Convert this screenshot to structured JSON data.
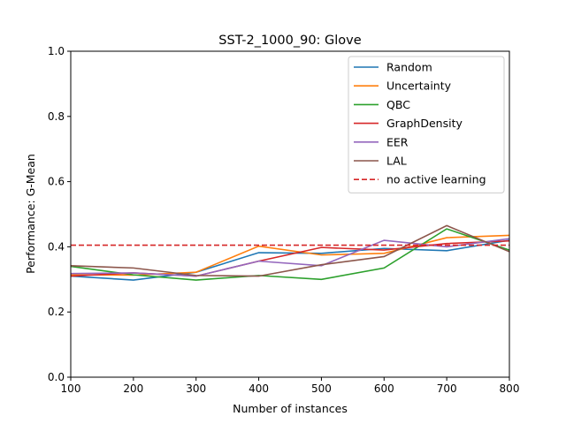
{
  "chart_data": {
    "type": "line",
    "title": "SST-2_1000_90: Glove",
    "xlabel": "Number of instances",
    "ylabel": "Performance: G-Mean",
    "xlim": [
      100,
      800
    ],
    "ylim": [
      0.0,
      1.0
    ],
    "xticks": [
      "100",
      "200",
      "300",
      "400",
      "500",
      "600",
      "700",
      "800"
    ],
    "yticks": [
      "0.0",
      "0.2",
      "0.4",
      "0.6",
      "0.8",
      "1.0"
    ],
    "grid": false,
    "legend_position": "top-right",
    "x": [
      100,
      200,
      300,
      400,
      500,
      600,
      700,
      800
    ],
    "series": [
      {
        "name": "Random",
        "color": "#1f77b4",
        "style": "solid",
        "values": [
          0.31,
          0.298,
          0.322,
          0.382,
          0.38,
          0.395,
          0.388,
          0.42
        ]
      },
      {
        "name": "Uncertainty",
        "color": "#ff7f0e",
        "style": "solid",
        "values": [
          0.314,
          0.313,
          0.322,
          0.402,
          0.375,
          0.38,
          0.428,
          0.435
        ]
      },
      {
        "name": "QBC",
        "color": "#2ca02c",
        "style": "solid",
        "values": [
          0.34,
          0.314,
          0.298,
          0.312,
          0.3,
          0.335,
          0.455,
          0.39
        ]
      },
      {
        "name": "GraphDensity",
        "color": "#d62728",
        "style": "solid",
        "values": [
          0.31,
          0.32,
          0.31,
          0.356,
          0.398,
          0.39,
          0.41,
          0.418
        ]
      },
      {
        "name": "EER",
        "color": "#9467bd",
        "style": "solid",
        "values": [
          0.318,
          0.32,
          0.31,
          0.356,
          0.342,
          0.42,
          0.4,
          0.425
        ]
      },
      {
        "name": "LAL",
        "color": "#8c564b",
        "style": "solid",
        "values": [
          0.342,
          0.335,
          0.312,
          0.31,
          0.345,
          0.37,
          0.465,
          0.385
        ]
      },
      {
        "name": "no active learning",
        "color": "#d62728",
        "style": "dashed",
        "values": [
          0.405,
          0.405,
          0.405,
          0.405,
          0.405,
          0.405,
          0.405,
          0.405
        ]
      }
    ]
  }
}
